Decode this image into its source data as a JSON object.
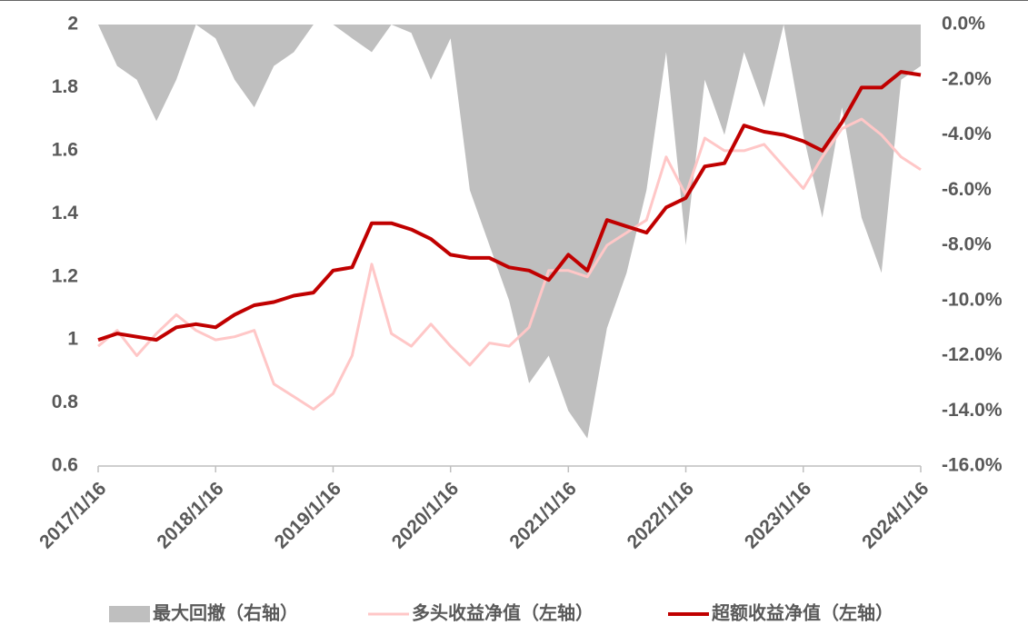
{
  "chart_data": {
    "type": "line",
    "x": [
      "2017/1/16",
      "2017/3/16",
      "2017/5/16",
      "2017/7/16",
      "2017/9/16",
      "2017/11/16",
      "2018/1/16",
      "2018/3/16",
      "2018/5/16",
      "2018/7/16",
      "2018/9/16",
      "2018/11/16",
      "2019/1/16",
      "2019/3/16",
      "2019/5/16",
      "2019/7/16",
      "2019/9/16",
      "2019/11/16",
      "2020/1/16",
      "2020/3/16",
      "2020/5/16",
      "2020/7/16",
      "2020/9/16",
      "2020/11/16",
      "2021/1/16",
      "2021/3/16",
      "2021/5/16",
      "2021/7/16",
      "2021/9/16",
      "2021/11/16",
      "2022/1/16",
      "2022/3/16",
      "2022/5/16",
      "2022/7/16",
      "2022/9/16",
      "2022/11/16",
      "2023/1/16",
      "2023/3/16",
      "2023/5/16",
      "2023/7/16",
      "2023/9/16",
      "2023/11/16",
      "2024/1/16"
    ],
    "series": [
      {
        "name": "最大回撤（右轴）",
        "kind": "area",
        "axis": "y2",
        "color": "#bfbfbf",
        "values": [
          0,
          -1.5,
          -2,
          -3.5,
          -2,
          0,
          -0.5,
          -2,
          -3,
          -1.5,
          -1,
          0,
          0,
          -0.5,
          -1,
          0,
          -0.3,
          -2,
          -0.5,
          -6,
          -8,
          -10,
          -13,
          -12,
          -14,
          -15,
          -11,
          -9,
          -6,
          -1,
          -8,
          -2,
          -4,
          -1,
          -3,
          0,
          -4,
          -7,
          -3,
          -7,
          -9,
          -2,
          -1.5
        ]
      },
      {
        "name": "多头收益净值（左轴）",
        "kind": "line",
        "color": "#ffc7c7",
        "values": [
          0.98,
          1.03,
          0.95,
          1.02,
          1.08,
          1.03,
          1.0,
          1.01,
          1.03,
          0.86,
          0.82,
          0.78,
          0.83,
          0.95,
          1.24,
          1.02,
          0.98,
          1.05,
          0.98,
          0.92,
          0.99,
          0.98,
          1.04,
          1.22,
          1.22,
          1.2,
          1.3,
          1.34,
          1.38,
          1.58,
          1.46,
          1.64,
          1.6,
          1.6,
          1.62,
          1.55,
          1.48,
          1.58,
          1.67,
          1.7,
          1.65,
          1.58,
          1.54
        ]
      },
      {
        "name": "超额收益净值（左轴）",
        "kind": "line",
        "color": "#c00000",
        "values": [
          1.0,
          1.02,
          1.01,
          1.0,
          1.04,
          1.05,
          1.04,
          1.08,
          1.11,
          1.12,
          1.14,
          1.15,
          1.22,
          1.23,
          1.37,
          1.37,
          1.35,
          1.32,
          1.27,
          1.26,
          1.26,
          1.23,
          1.22,
          1.19,
          1.27,
          1.22,
          1.38,
          1.36,
          1.34,
          1.42,
          1.45,
          1.55,
          1.56,
          1.68,
          1.66,
          1.65,
          1.63,
          1.6,
          1.69,
          1.8,
          1.8,
          1.85,
          1.84
        ]
      }
    ],
    "xlim": [
      "2017/1/16",
      "2024/1/16"
    ],
    "xticks": [
      "2017/1/16",
      "2018/1/16",
      "2019/1/16",
      "2020/1/16",
      "2021/1/16",
      "2022/1/16",
      "2023/1/16",
      "2024/1/16"
    ],
    "ylim": [
      0.6,
      2
    ],
    "yticks": [
      2,
      1.8,
      1.6,
      1.4,
      1.2,
      1,
      0.8,
      0.6
    ],
    "y2lim": [
      -16,
      0
    ],
    "y2ticks": [
      {
        "value": 0,
        "label": "0.0%"
      },
      {
        "value": -2,
        "label": "-2.0%"
      },
      {
        "value": -4,
        "label": "-4.0%"
      },
      {
        "value": -6,
        "label": "-6.0%"
      },
      {
        "value": -8,
        "label": "-8.0%"
      },
      {
        "value": -10,
        "label": "-10.0%"
      },
      {
        "value": -12,
        "label": "-12.0%"
      },
      {
        "value": -14,
        "label": "-14.0%"
      },
      {
        "value": -16,
        "label": "-16.0%"
      }
    ],
    "legend": "bottom"
  }
}
